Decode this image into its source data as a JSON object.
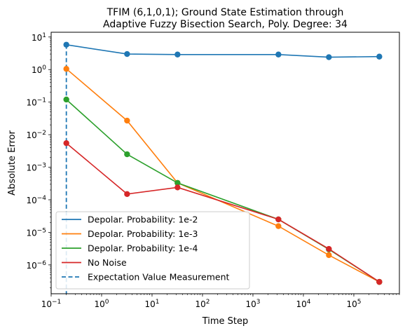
{
  "chart_data": {
    "type": "line",
    "title_lines": [
      "TFIM (6,1,0,1); Ground State Estimation through",
      "Adaptive Fuzzy Bisection Search, Poly. Degree: 34"
    ],
    "xlabel": "Time Step",
    "ylabel": "Absolute Error",
    "x_scale": "log",
    "y_scale": "log",
    "xlim": [
      0.1,
      800000
    ],
    "ylim": [
      1.3e-07,
      14
    ],
    "x_ticks": [
      {
        "value": 0.1,
        "base": "10",
        "exp": "−1"
      },
      {
        "value": 1,
        "base": "10",
        "exp": "0"
      },
      {
        "value": 10,
        "base": "10",
        "exp": "1"
      },
      {
        "value": 100,
        "base": "10",
        "exp": "2"
      },
      {
        "value": 1000,
        "base": "10",
        "exp": "3"
      },
      {
        "value": 10000,
        "base": "10",
        "exp": "4"
      },
      {
        "value": 100000,
        "base": "10",
        "exp": "5"
      }
    ],
    "y_ticks": [
      {
        "value": 1e-06,
        "base": "10",
        "exp": "−6"
      },
      {
        "value": 1e-05,
        "base": "10",
        "exp": "−5"
      },
      {
        "value": 0.0001,
        "base": "10",
        "exp": "−4"
      },
      {
        "value": 0.001,
        "base": "10",
        "exp": "−3"
      },
      {
        "value": 0.01,
        "base": "10",
        "exp": "−2"
      },
      {
        "value": 0.1,
        "base": "10",
        "exp": "−1"
      },
      {
        "value": 1,
        "base": "10",
        "exp": "0"
      },
      {
        "value": 10,
        "base": "10",
        "exp": "1"
      }
    ],
    "grid": false,
    "legend_position": "lower-left",
    "series": [
      {
        "name": "Depolar. Probability: 1e-2",
        "color": "#1f77b4",
        "x": [
          0.2,
          3.2,
          32,
          3200,
          32000,
          320000
        ],
        "y": [
          5.8,
          3.0,
          2.9,
          2.9,
          2.4,
          2.5
        ]
      },
      {
        "name": "Depolar. Probability: 1e-3",
        "color": "#ff7f0e",
        "x": [
          0.2,
          3.2,
          32,
          3200,
          32000,
          320000
        ],
        "y": [
          1.05,
          0.027,
          0.00033,
          1.55e-05,
          2e-06,
          3e-07
        ]
      },
      {
        "name": "Depolar. Probability: 1e-4",
        "color": "#2ca02c",
        "x": [
          0.2,
          3.2,
          32,
          3200,
          32000,
          320000
        ],
        "y": [
          0.12,
          0.0025,
          0.00033,
          2.5e-05,
          3e-06,
          3e-07
        ]
      },
      {
        "name": "No Noise",
        "color": "#d62728",
        "x": [
          0.2,
          3.2,
          32,
          3200,
          32000,
          320000
        ],
        "y": [
          0.0055,
          0.00015,
          0.00024,
          2.5e-05,
          3.1e-06,
          3e-07
        ]
      }
    ],
    "vline": {
      "name": "Expectation Value Measurement",
      "color": "#1f77b4",
      "x": 0.2,
      "y_top": 5.8
    }
  }
}
